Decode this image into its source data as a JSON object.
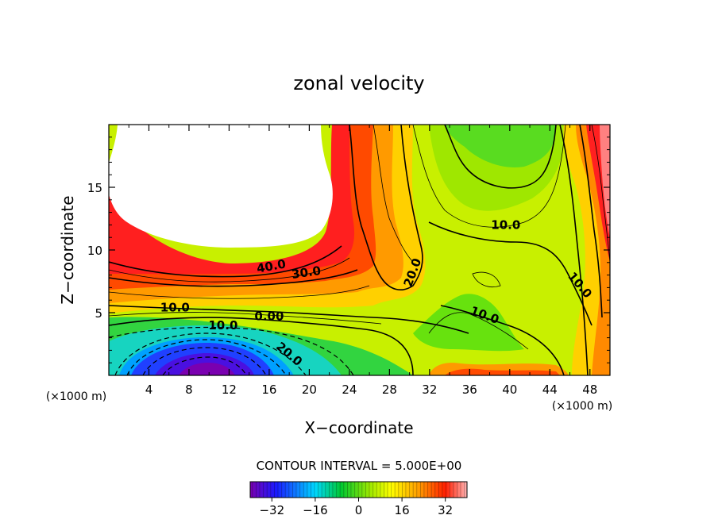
{
  "chart_data": {
    "type": "contour",
    "title": "zonal velocity",
    "xlabel": "X−coordinate",
    "ylabel": "Z−coordinate",
    "x_unit_left": "(×1000 m)",
    "x_unit_right": "(×1000 m)",
    "xlim": [
      0,
      50
    ],
    "ylim": [
      0,
      20
    ],
    "x_ticks": [
      {
        "value": 4,
        "label": "4"
      },
      {
        "value": 8,
        "label": "8"
      },
      {
        "value": 12,
        "label": "12"
      },
      {
        "value": 16,
        "label": "16"
      },
      {
        "value": 20,
        "label": "20"
      },
      {
        "value": 24,
        "label": "24"
      },
      {
        "value": 28,
        "label": "28"
      },
      {
        "value": 32,
        "label": "32"
      },
      {
        "value": 36,
        "label": "36"
      },
      {
        "value": 40,
        "label": "40"
      },
      {
        "value": 44,
        "label": "44"
      },
      {
        "value": 48,
        "label": "48"
      }
    ],
    "y_ticks": [
      {
        "value": 5,
        "label": "5"
      },
      {
        "value": 10,
        "label": "10"
      },
      {
        "value": 15,
        "label": "15"
      }
    ],
    "contour_interval_text": "CONTOUR INTERVAL = 5.000E+00",
    "colorbar": {
      "min": -40,
      "max": 40,
      "ticks": [
        {
          "value": -32,
          "label": "−32"
        },
        {
          "value": -16,
          "label": "−16"
        },
        {
          "value": 0,
          "label": "0"
        },
        {
          "value": 16,
          "label": "16"
        },
        {
          "value": 32,
          "label": "32"
        }
      ]
    },
    "contour_labels": [
      {
        "text": "40.0",
        "x": 16.2,
        "z": 8.7,
        "angle": -10
      },
      {
        "text": "30.0",
        "x": 19.7,
        "z": 8.2,
        "angle": -8
      },
      {
        "text": "20.0",
        "x": 30.3,
        "z": 8.2,
        "angle": -70
      },
      {
        "text": "10.0",
        "x": 39.6,
        "z": 12.0,
        "angle": 0
      },
      {
        "text": "10.0",
        "x": 47.0,
        "z": 7.2,
        "angle": 50
      },
      {
        "text": "10.0",
        "x": 6.6,
        "z": 5.4,
        "angle": 0
      },
      {
        "text": "0.00",
        "x": 16.0,
        "z": 4.7,
        "angle": 0
      },
      {
        "text": "10.0",
        "x": 37.5,
        "z": 4.8,
        "angle": 20
      },
      {
        "text": "10.0",
        "x": 11.4,
        "z": 4.0,
        "angle": 0
      },
      {
        "text": "20.0",
        "x": 18.0,
        "z": 1.7,
        "angle": 40
      }
    ]
  }
}
